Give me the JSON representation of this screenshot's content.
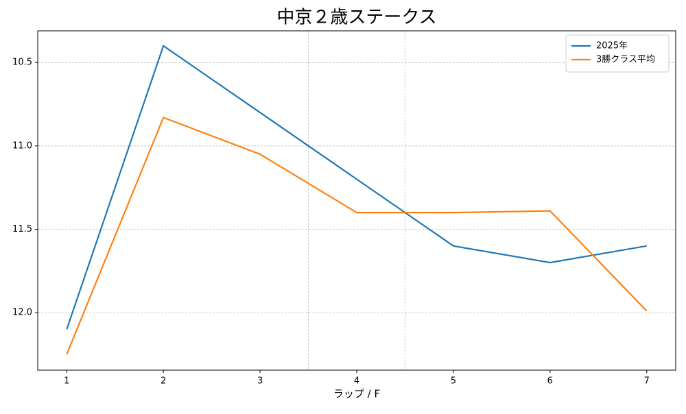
{
  "chart_data": {
    "type": "line",
    "title": "中京２歳ステークス",
    "x_label": "ラップ / F",
    "x": [
      1,
      2,
      3,
      4,
      5,
      6,
      7
    ],
    "series": [
      {
        "name": "2025年",
        "color": "#1f77b4",
        "values": [
          12.1,
          10.4,
          10.8,
          11.2,
          11.6,
          11.7,
          11.6
        ]
      },
      {
        "name": "3勝クラス平均",
        "color": "#ff7f0e",
        "values": [
          12.25,
          10.83,
          11.05,
          11.4,
          11.4,
          11.39,
          11.99
        ]
      }
    ],
    "xlim": [
      0.7,
      7.3
    ],
    "xticks": [
      1,
      2,
      3,
      4,
      5,
      6,
      7
    ],
    "ylim": [
      10.31,
      12.345
    ],
    "y_inverted": true,
    "yticks": [
      {
        "value": 10.5,
        "label": "10.5"
      },
      {
        "value": 11,
        "label": "11.0"
      },
      {
        "value": 11.5,
        "label": "11.5"
      },
      {
        "value": 12,
        "label": "12.0"
      }
    ],
    "vlines": [
      3.5,
      4.5
    ],
    "grid": true,
    "legend": "upper right"
  }
}
